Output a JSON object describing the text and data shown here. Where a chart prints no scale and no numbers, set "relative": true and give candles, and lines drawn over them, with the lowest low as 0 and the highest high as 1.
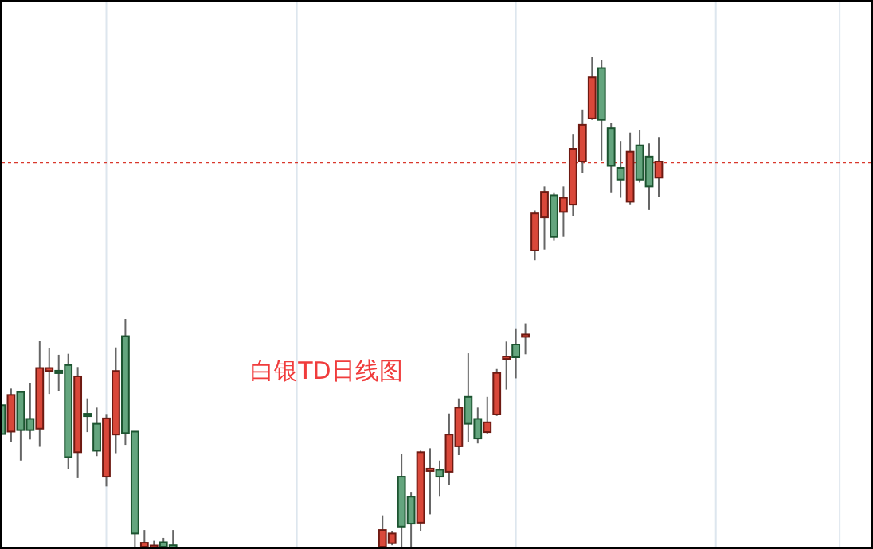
{
  "chart_data": {
    "type": "candlestick",
    "title": "白银TD日线图",
    "relative": true,
    "grid": "x",
    "categories": [
      null,
      null,
      null,
      null,
      null,
      null,
      null,
      null,
      null,
      null,
      null,
      null,
      null,
      null,
      null,
      null,
      null,
      null,
      null,
      null,
      null,
      null,
      null,
      null,
      null,
      null,
      null,
      null,
      null,
      null,
      null,
      null,
      null,
      null,
      null,
      null,
      null,
      null,
      null,
      null,
      null,
      null,
      null,
      null,
      null,
      null,
      null,
      null,
      null,
      null,
      null,
      null,
      null,
      null,
      null,
      null,
      null,
      null,
      null,
      null,
      null,
      null,
      null,
      null,
      null,
      null,
      null,
      null,
      null,
      null,
      null,
      null,
      null,
      null,
      null,
      null,
      null,
      null,
      null,
      null,
      null,
      null,
      null,
      null,
      null,
      null,
      null,
      null,
      null,
      null,
      null,
      null
    ],
    "ohlc": [
      [
        0.289,
        0.299,
        0.225,
        0.23
      ],
      [
        0.235,
        0.323,
        0.213,
        0.31
      ],
      [
        0.316,
        0.318,
        0.176,
        0.238
      ],
      [
        0.261,
        0.335,
        0.219,
        0.238
      ],
      [
        0.241,
        0.421,
        0.204,
        0.365
      ],
      [
        0.359,
        0.406,
        0.312,
        0.365
      ],
      [
        0.359,
        0.392,
        0.318,
        0.355
      ],
      [
        0.371,
        0.394,
        0.159,
        0.183
      ],
      [
        0.193,
        0.367,
        0.14,
        0.348
      ],
      [
        0.271,
        0.303,
        0.234,
        0.267
      ],
      [
        0.251,
        0.284,
        0.185,
        0.196
      ],
      [
        0.143,
        0.271,
        0.123,
        0.262
      ],
      [
        0.229,
        0.407,
        0.191,
        0.359
      ],
      [
        0.43,
        0.465,
        0.208,
        0.232
      ],
      [
        0.235,
        0.235,
        0,
        0.027
      ],
      [
        0,
        0.034,
        0,
        0.008
      ],
      [
        0,
        0.012,
        0,
        0
      ],
      [
        0.009,
        0.018,
        0,
        0
      ],
      [
        0.001,
        0.034,
        0,
        0
      ],
      null,
      null,
      null,
      null,
      null,
      null,
      null,
      null,
      null,
      null,
      null,
      null,
      null,
      null,
      null,
      null,
      null,
      null,
      null,
      null,
      null,
      [
        0,
        0.064,
        0,
        0.034
      ],
      [
        0.007,
        0.032,
        0.003,
        0.027
      ],
      [
        0.143,
        0.19,
        0,
        0.041
      ],
      [
        0.102,
        0.112,
        0,
        0.047
      ],
      [
        0.049,
        0.196,
        0.032,
        0.193
      ],
      [
        0.157,
        0.201,
        0.066,
        0.157
      ],
      [
        0.157,
        0.176,
        0.102,
        0.143
      ],
      [
        0.153,
        0.272,
        0.126,
        0.229
      ],
      [
        0.205,
        0.303,
        0.187,
        0.284
      ],
      [
        0.306,
        0.395,
        0.213,
        0.251
      ],
      [
        0.261,
        0.284,
        0.211,
        0.221
      ],
      [
        0.234,
        0.306,
        0.23,
        0.254
      ],
      [
        0.27,
        0.363,
        0.267,
        0.355
      ],
      [
        0.386,
        0.419,
        0.321,
        0.386
      ],
      [
        0.413,
        0.446,
        0.344,
        0.387
      ],
      [
        0.431,
        0.456,
        0.393,
        0.431
      ],
      [
        0.605,
        0.687,
        0.585,
        0.681
      ],
      [
        0.673,
        0.736,
        0.607,
        0.725
      ],
      [
        0.718,
        0.724,
        0.625,
        0.633
      ],
      [
        0.684,
        0.736,
        0.633,
        0.713
      ],
      [
        0.699,
        0.842,
        0.675,
        0.813
      ],
      [
        0.787,
        0.893,
        0.764,
        0.862
      ],
      [
        0.875,
        1,
        0.872,
        0.959
      ],
      [
        0.978,
        0.995,
        0.789,
        0.872
      ],
      [
        0.855,
        0.866,
        0.724,
        0.778
      ],
      [
        0.774,
        0.829,
        0.713,
        0.75
      ],
      [
        0.705,
        0.846,
        0.698,
        0.807
      ],
      [
        0.82,
        0.852,
        0.744,
        0.75
      ],
      [
        0.797,
        0.824,
        0.688,
        0.736
      ],
      [
        0.754,
        0.837,
        0.715,
        0.787
      ],
      null,
      null,
      null,
      null,
      null,
      null,
      null,
      null,
      null,
      null,
      null,
      null,
      null,
      null,
      null,
      null,
      null,
      null,
      null,
      null,
      null,
      null
    ],
    "ref_lines": [
      {
        "axis": "y",
        "value": 0.785,
        "color": "#d9382c",
        "line_style": "dotted"
      }
    ]
  }
}
